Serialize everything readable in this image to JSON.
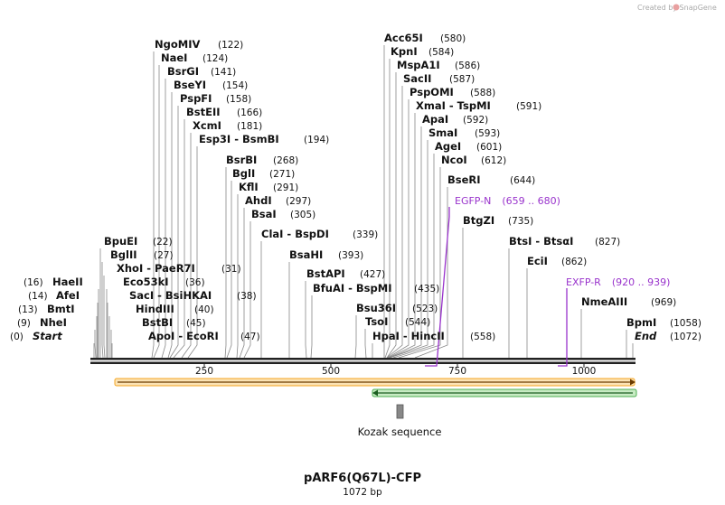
{
  "credit": "Created by SnapGene",
  "title": "pARF6(Q67L)-CFP",
  "length_label": "1072 bp",
  "scale_ticks": [
    "250",
    "500",
    "750",
    "1000"
  ],
  "feature_kozak": "Kozak sequence",
  "sites": [
    {
      "name": "Start",
      "pos": "(0)"
    },
    {
      "name": "NheI",
      "pos": "(9)"
    },
    {
      "name": "BmtI",
      "pos": "(13)"
    },
    {
      "name": "AfeI",
      "pos": "(14)"
    },
    {
      "name": "HaeII",
      "pos": "(16)"
    },
    {
      "name": "BpuEI",
      "pos": "(22)"
    },
    {
      "name": "BglII",
      "pos": "(27)"
    },
    {
      "name": "XhoI - PaeR7I",
      "pos": "(31)"
    },
    {
      "name": "Eco53kI",
      "pos": "(36)"
    },
    {
      "name": "SacI - BsiHKAI",
      "pos": "(38)"
    },
    {
      "name": "HindIII",
      "pos": "(40)"
    },
    {
      "name": "BstBI",
      "pos": "(45)"
    },
    {
      "name": "ApoI - EcoRI",
      "pos": "(47)"
    },
    {
      "name": "NgoMIV",
      "pos": "(122)"
    },
    {
      "name": "NaeI",
      "pos": "(124)"
    },
    {
      "name": "BsrGI",
      "pos": "(141)"
    },
    {
      "name": "BseYI",
      "pos": "(154)"
    },
    {
      "name": "PspFI",
      "pos": "(158)"
    },
    {
      "name": "BstEII",
      "pos": "(166)"
    },
    {
      "name": "XcmI",
      "pos": "(181)"
    },
    {
      "name": "Esp3I - BsmBI",
      "pos": "(194)"
    },
    {
      "name": "BsrBI",
      "pos": "(268)"
    },
    {
      "name": "BglI",
      "pos": "(271)"
    },
    {
      "name": "KflI",
      "pos": "(291)"
    },
    {
      "name": "AhdI",
      "pos": "(297)"
    },
    {
      "name": "BsaI",
      "pos": "(305)"
    },
    {
      "name": "ClaI - BspDI",
      "pos": "(339)"
    },
    {
      "name": "BsaHI",
      "pos": "(393)"
    },
    {
      "name": "BstAPI",
      "pos": "(427)"
    },
    {
      "name": "BfuAI - BspMI",
      "pos": "(435)"
    },
    {
      "name": "Bsu36I",
      "pos": "(523)"
    },
    {
      "name": "TsoI",
      "pos": "(544)"
    },
    {
      "name": "HpaI - HincII",
      "pos": "(558)"
    },
    {
      "name": "Acc65I",
      "pos": "(580)"
    },
    {
      "name": "KpnI",
      "pos": "(584)"
    },
    {
      "name": "MspA1I",
      "pos": "(586)"
    },
    {
      "name": "SacII",
      "pos": "(587)"
    },
    {
      "name": "PspOMI",
      "pos": "(588)"
    },
    {
      "name": "XmaI - TspMI",
      "pos": "(591)"
    },
    {
      "name": "ApaI",
      "pos": "(592)"
    },
    {
      "name": "SmaI",
      "pos": "(593)"
    },
    {
      "name": "AgeI",
      "pos": "(601)"
    },
    {
      "name": "NcoI",
      "pos": "(612)"
    },
    {
      "name": "BseRI",
      "pos": "(644)"
    },
    {
      "name": "BtgZI",
      "pos": "(735)"
    },
    {
      "name": "BtsI - BtsαI",
      "pos": "(827)"
    },
    {
      "name": "EciI",
      "pos": "(862)"
    },
    {
      "name": "NmeAIII",
      "pos": "(969)"
    },
    {
      "name": "BpmI",
      "pos": "(1058)"
    },
    {
      "name": "End",
      "pos": "(1072)"
    }
  ],
  "primers": [
    {
      "name": "EGFP-N",
      "range": "(659 .. 680)"
    },
    {
      "name": "EXFP-R",
      "range": "(920 .. 939)"
    }
  ],
  "colors": {
    "forward_feature": "#f5a623",
    "reverse_feature": "#4caf50",
    "primer": "#9933cc",
    "backbone": "#222222"
  }
}
